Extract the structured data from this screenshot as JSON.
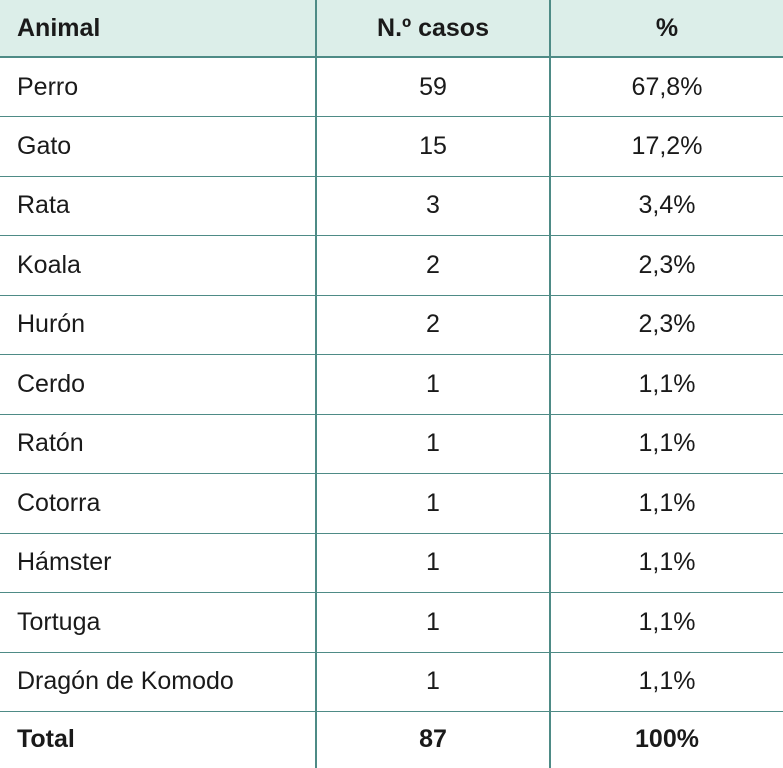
{
  "table": {
    "headers": [
      "Animal",
      "N.º casos",
      "%"
    ],
    "rows": [
      {
        "animal": "Perro",
        "cases": "59",
        "percent": "67,8%"
      },
      {
        "animal": "Gato",
        "cases": "15",
        "percent": "17,2%"
      },
      {
        "animal": "Rata",
        "cases": "3",
        "percent": "3,4%"
      },
      {
        "animal": "Koala",
        "cases": "2",
        "percent": "2,3%"
      },
      {
        "animal": "Hurón",
        "cases": "2",
        "percent": "2,3%"
      },
      {
        "animal": "Cerdo",
        "cases": "1",
        "percent": "1,1%"
      },
      {
        "animal": "Ratón",
        "cases": "1",
        "percent": "1,1%"
      },
      {
        "animal": "Cotorra",
        "cases": "1",
        "percent": "1,1%"
      },
      {
        "animal": "Hámster",
        "cases": "1",
        "percent": "1,1%"
      },
      {
        "animal": "Tortuga",
        "cases": "1",
        "percent": "1,1%"
      },
      {
        "animal": "Dragón de Komodo",
        "cases": "1",
        "percent": "1,1%"
      }
    ],
    "total": {
      "label": "Total",
      "cases": "87",
      "percent": "100%"
    }
  },
  "colors": {
    "header_background": "#dceee9",
    "border": "#4e8b86"
  }
}
